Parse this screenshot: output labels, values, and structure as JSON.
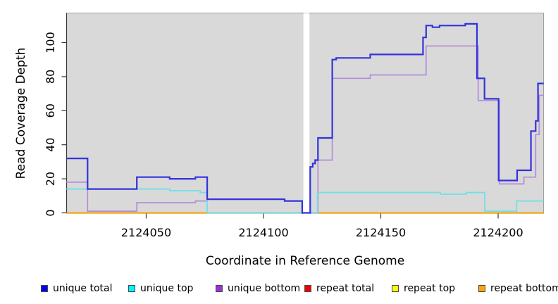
{
  "figure": {
    "x_axis": {
      "label": "Coordinate in Reference Genome",
      "ticks": [
        "2124050",
        "2124100",
        "2124150",
        "2124200"
      ]
    },
    "y_axis": {
      "label": "Read Coverage Depth",
      "ticks": [
        "0",
        "20",
        "40",
        "60",
        "80",
        "100"
      ]
    },
    "legend": {
      "items": [
        {
          "label": "unique total",
          "color": "#0000EE"
        },
        {
          "label": "unique top",
          "color": "#00F5FF"
        },
        {
          "label": "unique bottom",
          "color": "#9B30D9"
        },
        {
          "label": "repeat total",
          "color": "#EE0000"
        },
        {
          "label": "repeat top",
          "color": "#FFFF00"
        },
        {
          "label": "repeat bottom",
          "color": "#FFA500"
        }
      ]
    },
    "colors": {
      "panel_background": "#D9D9D9",
      "panel_border": "#A0A0A0",
      "axis_line": "#38383C",
      "masked_band": "#FFFFFF",
      "zero_overlap_blend": "#8FD59A"
    }
  },
  "chart_data": {
    "type": "line",
    "title": "",
    "xlabel": "Coordinate in Reference Genome",
    "ylabel": "Read Coverage Depth",
    "xlim": [
      2124016,
      2124219
    ],
    "ylim": [
      0,
      117
    ],
    "x_ticks": [
      2124050,
      2124100,
      2124150,
      2124200
    ],
    "y_ticks": [
      0,
      20,
      40,
      60,
      80,
      100
    ],
    "grid": false,
    "legend_position": "bottom",
    "steps_format": "[coordinate, depth]; depth holds until next coordinate",
    "masked_region": {
      "x_start": 2124117,
      "x_end": 2124119.6,
      "style": "white vertical band, all series hidden except unique total at 0"
    },
    "zero_overlap_blend": {
      "color": "#8FD59A",
      "x_start": 2124076,
      "x_end": 2124116.5,
      "note": "unique-top line at 0 over repeat-bottom renders green"
    },
    "series": [
      {
        "name": "unique total",
        "color": "#3232DC",
        "width": 2.2,
        "steps": [
          [
            2124016,
            32
          ],
          [
            2124025,
            14
          ],
          [
            2124046,
            21
          ],
          [
            2124060,
            20
          ],
          [
            2124071,
            21
          ],
          [
            2124076,
            8
          ],
          [
            2124109,
            7
          ],
          [
            2124116.5,
            0
          ],
          [
            2124119.9,
            27
          ],
          [
            2124121,
            29
          ],
          [
            2124122,
            31
          ],
          [
            2124123.2,
            44
          ],
          [
            2124129.3,
            90
          ],
          [
            2124131,
            91
          ],
          [
            2124145.5,
            93
          ],
          [
            2124168,
            103
          ],
          [
            2124169.3,
            110
          ],
          [
            2124172,
            109
          ],
          [
            2124175,
            110
          ],
          [
            2124186,
            111
          ],
          [
            2124191,
            79
          ],
          [
            2124194.2,
            67
          ],
          [
            2124200.2,
            19
          ],
          [
            2124208.1,
            25
          ],
          [
            2124214,
            48
          ],
          [
            2124216,
            54
          ],
          [
            2124217,
            76
          ],
          [
            2124219.4,
            76
          ]
        ]
      },
      {
        "name": "unique top",
        "color": "#6EE0E8",
        "width": 1.7,
        "steps": [
          [
            2124016,
            14
          ],
          [
            2124060,
            13
          ],
          [
            2124073,
            12
          ],
          [
            2124076,
            0
          ],
          [
            2124123,
            12
          ],
          [
            2124175.4,
            11
          ],
          [
            2124186.4,
            12
          ],
          [
            2124194.3,
            1
          ],
          [
            2124207.9,
            7
          ],
          [
            2124219.4,
            7
          ]
        ]
      },
      {
        "name": "unique bottom",
        "color": "#B48CD8",
        "width": 1.7,
        "steps": [
          [
            2124016,
            18
          ],
          [
            2124025,
            1
          ],
          [
            2124046,
            6
          ],
          [
            2124071,
            7
          ],
          [
            2124076,
            8
          ],
          [
            2124109,
            7
          ],
          [
            2124116.5,
            0
          ],
          [
            2124123.2,
            31
          ],
          [
            2124129.3,
            79
          ],
          [
            2124145.5,
            81
          ],
          [
            2124169.3,
            98
          ],
          [
            2124191.5,
            66
          ],
          [
            2124200.5,
            17
          ],
          [
            2124211,
            21
          ],
          [
            2124216,
            46
          ],
          [
            2124217.5,
            69
          ],
          [
            2124219.4,
            69
          ]
        ]
      },
      {
        "name": "repeat total",
        "color": "#EE0000",
        "width": 1.5,
        "steps": [
          [
            2124016,
            0
          ],
          [
            2124219.4,
            0
          ]
        ]
      },
      {
        "name": "repeat top",
        "color": "#FFFF00",
        "width": 1.5,
        "steps": [
          [
            2124016,
            0
          ],
          [
            2124219.4,
            0
          ]
        ]
      },
      {
        "name": "repeat bottom",
        "color": "#FFA500",
        "width": 2,
        "steps": [
          [
            2124016,
            0
          ],
          [
            2124219.4,
            0
          ]
        ]
      }
    ]
  }
}
